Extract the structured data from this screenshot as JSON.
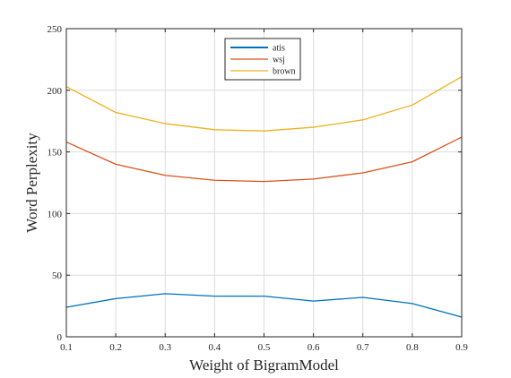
{
  "chart_data": {
    "type": "line",
    "title": "",
    "xlabel": "Weight of BigramModel",
    "ylabel": "Word Perplexity",
    "xlim": [
      0.1,
      0.9
    ],
    "ylim": [
      0,
      250
    ],
    "x": [
      0.1,
      0.2,
      0.3,
      0.4,
      0.5,
      0.6,
      0.7,
      0.8,
      0.9
    ],
    "x_ticks": [
      "0.1",
      "0.2",
      "0.3",
      "0.4",
      "0.5",
      "0.6",
      "0.7",
      "0.8",
      "0.9"
    ],
    "y_ticks": [
      "0",
      "50",
      "100",
      "150",
      "200",
      "250"
    ],
    "grid": true,
    "legend_position": "top-center",
    "series": [
      {
        "name": "atis",
        "color": "#0072BD",
        "values": [
          24,
          31,
          35,
          33,
          33,
          29,
          32,
          27,
          16
        ]
      },
      {
        "name": "wsj",
        "color": "#D95319",
        "values": [
          158,
          140,
          131,
          127,
          126,
          128,
          133,
          142,
          162
        ]
      },
      {
        "name": "brown",
        "color": "#EDB120",
        "values": [
          203,
          182,
          173,
          168,
          167,
          170,
          176,
          188,
          211
        ]
      }
    ]
  }
}
